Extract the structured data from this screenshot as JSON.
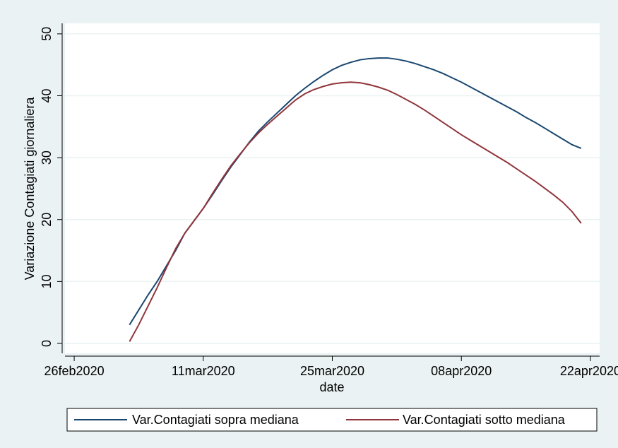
{
  "chart_data": {
    "type": "line",
    "xlabel": "date",
    "ylabel": "Variazione Contagiati giornaliera",
    "x": [
      "2020-03-03",
      "2020-03-04",
      "2020-03-05",
      "2020-03-06",
      "2020-03-07",
      "2020-03-08",
      "2020-03-09",
      "2020-03-10",
      "2020-03-11",
      "2020-03-12",
      "2020-03-13",
      "2020-03-14",
      "2020-03-15",
      "2020-03-16",
      "2020-03-17",
      "2020-03-18",
      "2020-03-19",
      "2020-03-20",
      "2020-03-21",
      "2020-03-22",
      "2020-03-23",
      "2020-03-24",
      "2020-03-25",
      "2020-03-26",
      "2020-03-27",
      "2020-03-28",
      "2020-03-29",
      "2020-03-30",
      "2020-03-31",
      "2020-04-01",
      "2020-04-02",
      "2020-04-03",
      "2020-04-04",
      "2020-04-05",
      "2020-04-06",
      "2020-04-07",
      "2020-04-08",
      "2020-04-09",
      "2020-04-10",
      "2020-04-11",
      "2020-04-12",
      "2020-04-13",
      "2020-04-14",
      "2020-04-15",
      "2020-04-16",
      "2020-04-17",
      "2020-04-18",
      "2020-04-19",
      "2020-04-20",
      "2020-04-21"
    ],
    "series": [
      {
        "name": "Var.Contagiati sopra mediana",
        "color": "#1a476f",
        "values": [
          3.0,
          5.4,
          7.8,
          10.0,
          12.5,
          15.0,
          17.8,
          19.8,
          21.8,
          24.0,
          26.3,
          28.5,
          30.5,
          32.5,
          34.3,
          35.8,
          37.2,
          38.6,
          40.0,
          41.2,
          42.3,
          43.3,
          44.2,
          44.9,
          45.4,
          45.8,
          46.0,
          46.1,
          46.1,
          45.9,
          45.6,
          45.2,
          44.7,
          44.2,
          43.6,
          42.9,
          42.2,
          41.4,
          40.6,
          39.8,
          39.0,
          38.2,
          37.4,
          36.5,
          35.7,
          34.8,
          33.9,
          33.0,
          32.1,
          31.5
        ]
      },
      {
        "name": "Var.Contagiati sotto mediana",
        "color": "#90353b",
        "values": [
          0.3,
          3.0,
          6.0,
          9.0,
          12.2,
          15.3,
          17.8,
          19.8,
          21.8,
          24.2,
          26.5,
          28.7,
          30.6,
          32.4,
          34.0,
          35.4,
          36.7,
          38.0,
          39.3,
          40.3,
          41.0,
          41.5,
          41.9,
          42.1,
          42.2,
          42.1,
          41.8,
          41.4,
          40.9,
          40.2,
          39.4,
          38.6,
          37.7,
          36.7,
          35.7,
          34.7,
          33.7,
          32.8,
          31.9,
          31.0,
          30.1,
          29.2,
          28.2,
          27.2,
          26.2,
          25.1,
          24.0,
          22.8,
          21.3,
          19.4
        ]
      }
    ],
    "xlim": [
      "2020-02-25",
      "2020-04-23"
    ],
    "xticks": [
      {
        "value": "2020-02-26",
        "label": "26feb2020"
      },
      {
        "value": "2020-03-11",
        "label": "11mar2020"
      },
      {
        "value": "2020-03-25",
        "label": "25mar2020"
      },
      {
        "value": "2020-04-08",
        "label": "08apr2020"
      },
      {
        "value": "2020-04-22",
        "label": "22apr2020"
      }
    ],
    "ylim": [
      -1.6,
      51.7
    ],
    "yticks": [
      0,
      10,
      20,
      30,
      40,
      50
    ],
    "grid": true,
    "legend": "bottom"
  }
}
